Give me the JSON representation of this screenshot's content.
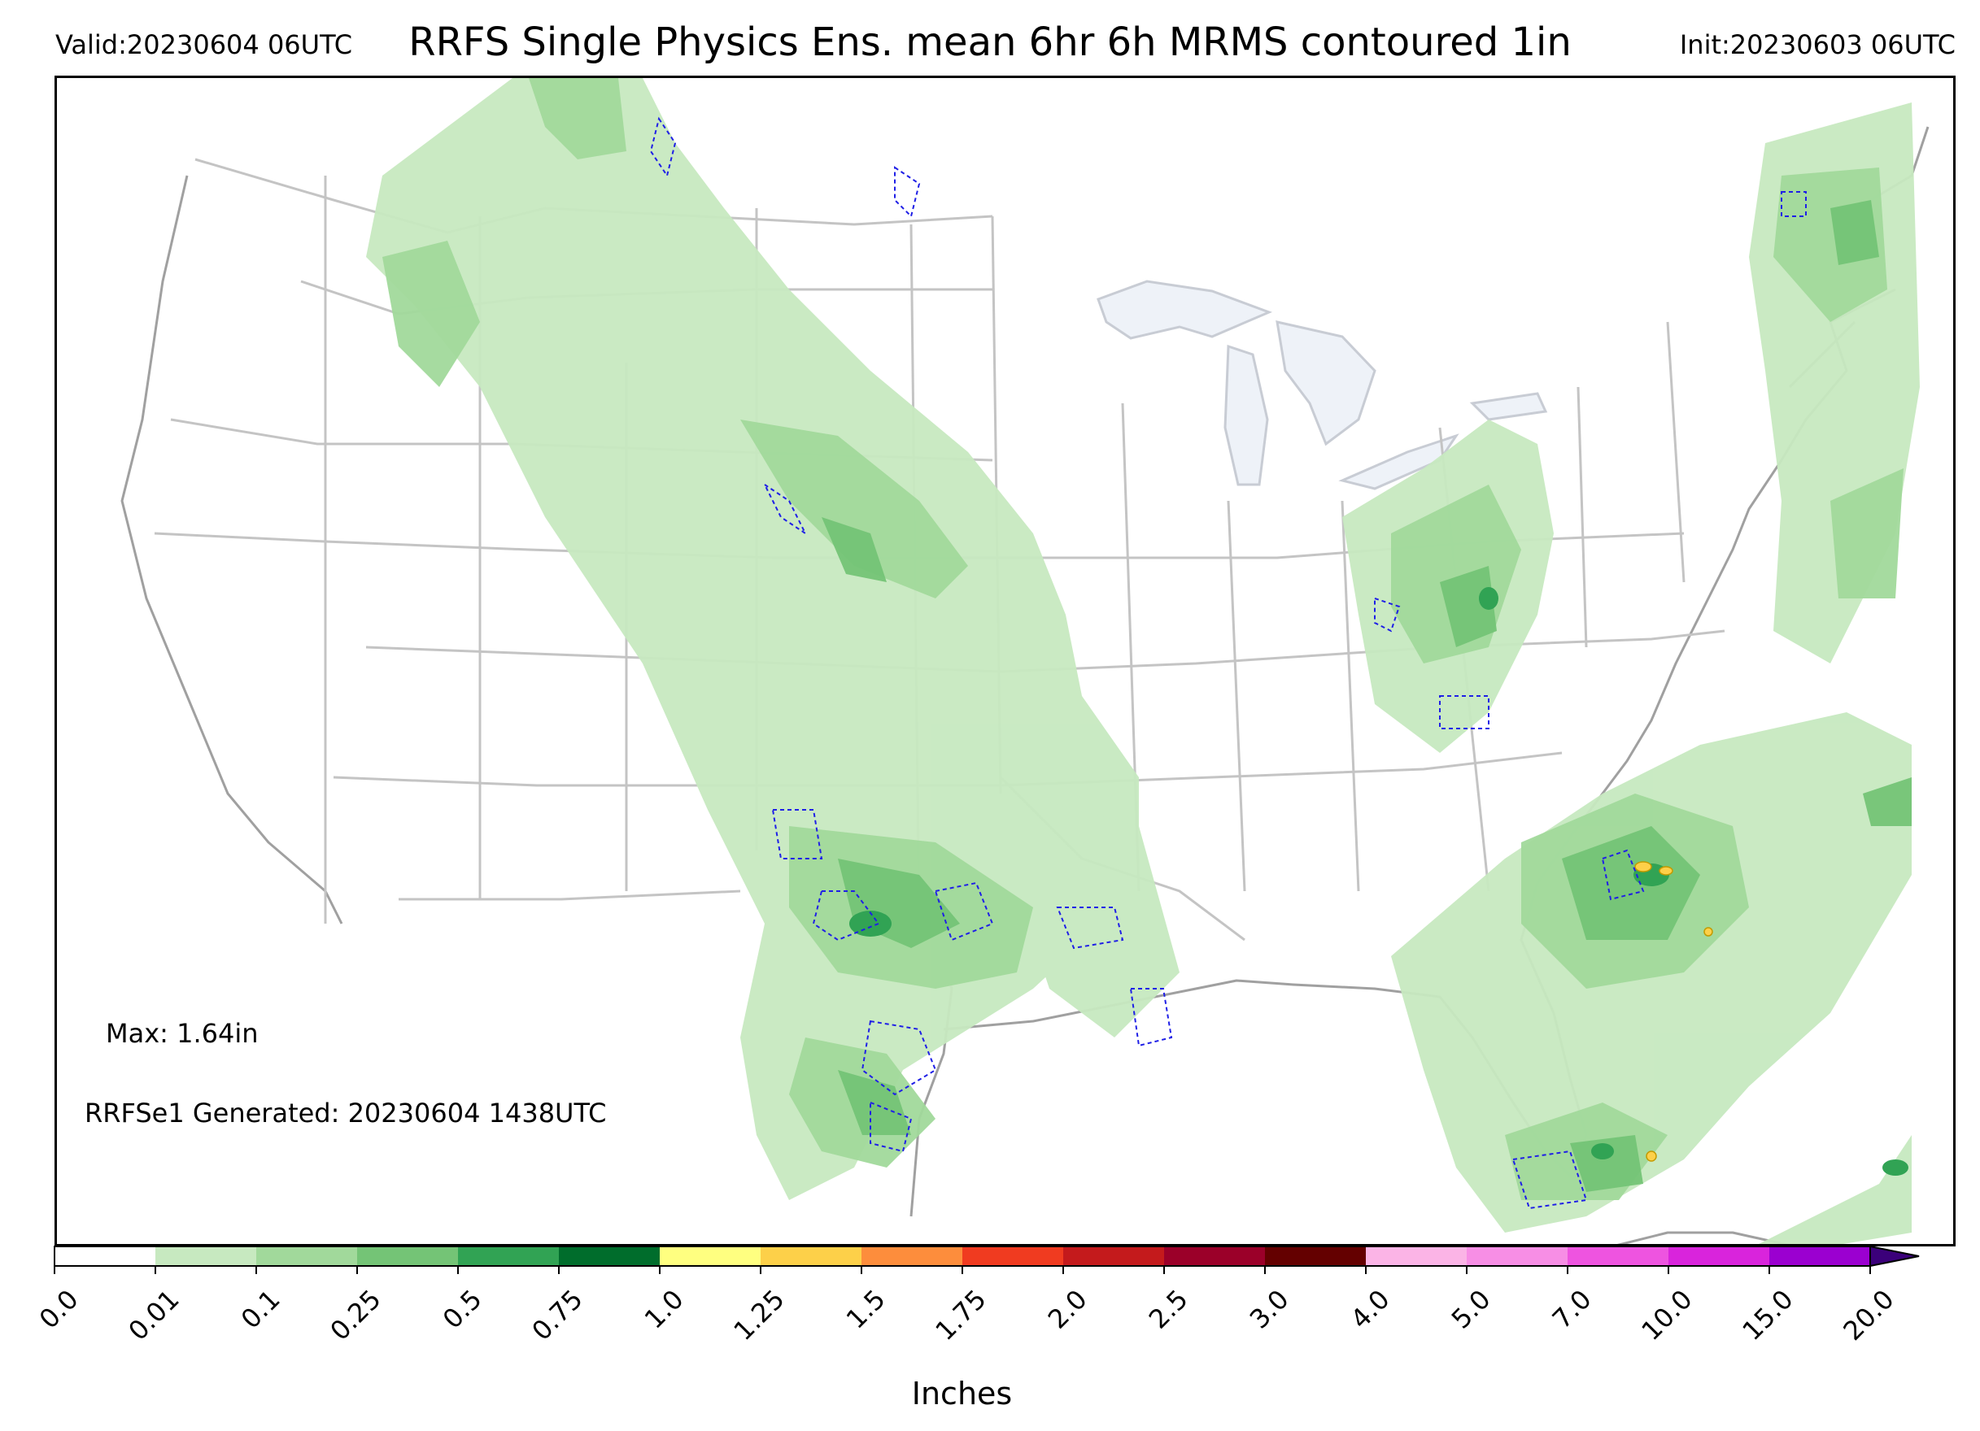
{
  "header": {
    "valid": "Valid:20230604 06UTC",
    "title": "RRFS Single Physics Ens. mean 6hr 6h MRMS contoured 1in",
    "init": "Init:20230603 06UTC"
  },
  "annotations": {
    "max": "Max: 1.64in",
    "generated": "RRFSe1 Generated: 20230604 1438UTC"
  },
  "colorbar": {
    "label": "Inches",
    "ticks": [
      "0.0",
      "0.01",
      "0.1",
      "0.25",
      "0.5",
      "0.75",
      "1.0",
      "1.25",
      "1.5",
      "1.75",
      "2.0",
      "2.5",
      "3.0",
      "4.0",
      "5.0",
      "7.0",
      "10.0",
      "15.0",
      "20.0"
    ],
    "colors": [
      "#ffffff",
      "#c7e9c0",
      "#a1d99b",
      "#74c476",
      "#31a354",
      "#006d2c",
      "#ffff80",
      "#fdd049",
      "#fd8d3c",
      "#f03b20",
      "#c41a1c",
      "#9b0029",
      "#640000",
      "#fbb4e6",
      "#f78ee5",
      "#ee54e0",
      "#d924dc",
      "#9b00d0"
    ],
    "extend_color": "#3b007a"
  },
  "colors": {
    "precip_light": "#c7e9c0",
    "precip_mid": "#a1d99b",
    "precip_high": "#74c476",
    "precip_heavy": "#31a354",
    "mrms_contour": "#1f1fe6",
    "border": "#b8b8b8",
    "lakes": "#eef2f8"
  }
}
